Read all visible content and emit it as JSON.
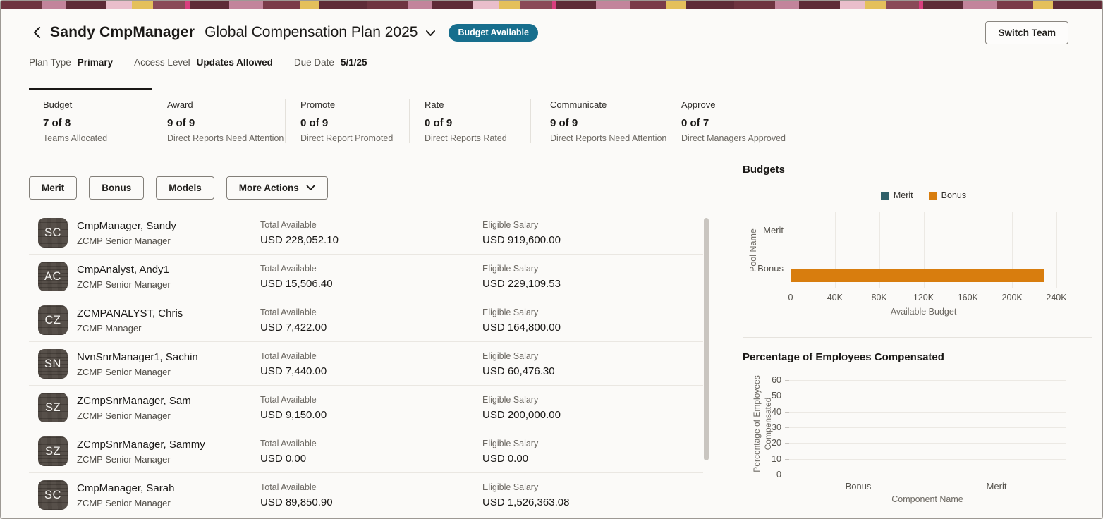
{
  "header": {
    "manager_name": "Sandy CmpManager",
    "plan_title": "Global Compensation Plan 2025",
    "badge": "Budget Available",
    "switch_team": "Switch Team"
  },
  "meta": [
    {
      "label": "Plan Type",
      "value": "Primary"
    },
    {
      "label": "Access Level",
      "value": "Updates Allowed"
    },
    {
      "label": "Due Date",
      "value": "5/1/25"
    }
  ],
  "tabs": [
    {
      "label": "Budget",
      "count": "7 of 8",
      "sub": "Teams Allocated",
      "active": true
    },
    {
      "label": "Award",
      "count": "9 of 9",
      "sub": "Direct Reports Need Attention",
      "active": false
    },
    {
      "label": "Promote",
      "count": "0 of 9",
      "sub": "Direct Report Promoted",
      "active": false
    },
    {
      "label": "Rate",
      "count": "0 of 9",
      "sub": "Direct Reports Rated",
      "active": false
    },
    {
      "label": "Communicate",
      "count": "9 of 9",
      "sub": "Direct Reports Need Attention",
      "active": false
    },
    {
      "label": "Approve",
      "count": "0 of 7",
      "sub": "Direct Managers Approved",
      "active": false
    }
  ],
  "toolbar": {
    "buttons": [
      "Merit",
      "Bonus",
      "Models"
    ],
    "more_actions": "More Actions"
  },
  "list": {
    "total_available_label": "Total Available",
    "eligible_salary_label": "Eligible Salary",
    "rows": [
      {
        "initials": "SC",
        "name": "CmpManager, Sandy",
        "title": "ZCMP Senior Manager",
        "total_available": "USD 228,052.10",
        "eligible_salary": "USD 919,600.00"
      },
      {
        "initials": "AC",
        "name": "CmpAnalyst, Andy1",
        "title": "ZCMP Senior Manager",
        "total_available": "USD 15,506.40",
        "eligible_salary": "USD 229,109.53"
      },
      {
        "initials": "CZ",
        "name": "ZCMPANALYST, Chris",
        "title": "ZCMP Manager",
        "total_available": "USD 7,422.00",
        "eligible_salary": "USD 164,800.00"
      },
      {
        "initials": "SN",
        "name": "NvnSnrManager1, Sachin",
        "title": "ZCMP Senior Manager",
        "total_available": "USD 7,440.00",
        "eligible_salary": "USD 60,476.30"
      },
      {
        "initials": "SZ",
        "name": "ZCmpSnrManager, Sam",
        "title": "ZCMP Senior Manager",
        "total_available": "USD 9,150.00",
        "eligible_salary": "USD 200,000.00"
      },
      {
        "initials": "SZ",
        "name": "ZCmpSnrManager, Sammy",
        "title": "ZCMP Senior Manager",
        "total_available": "USD 0.00",
        "eligible_salary": "USD 0.00"
      },
      {
        "initials": "SC",
        "name": "CmpManager, Sarah",
        "title": "ZCMP Senior Manager",
        "total_available": "USD 89,850.90",
        "eligible_salary": "USD 1,526,363.08"
      }
    ]
  },
  "colors": {
    "merit": "#2E5F68",
    "bonus": "#D87D0E",
    "badge": "#176E8D"
  },
  "chart_data": [
    {
      "type": "bar",
      "orientation": "horizontal",
      "title": "Budgets",
      "categories": [
        "Merit",
        "Bonus"
      ],
      "series": [
        {
          "name": "Merit",
          "color": "#2E5F68",
          "values": [
            0,
            0
          ]
        },
        {
          "name": "Bonus",
          "color": "#D87D0E",
          "values": [
            0,
            228052.1
          ]
        }
      ],
      "xlabel": "Available Budget",
      "ylabel": "Pool Name",
      "xlim": [
        0,
        240000
      ],
      "xticks": [
        {
          "v": 0,
          "label": "0"
        },
        {
          "v": 40000,
          "label": "40K"
        },
        {
          "v": 80000,
          "label": "80K"
        },
        {
          "v": 120000,
          "label": "120K"
        },
        {
          "v": 160000,
          "label": "160K"
        },
        {
          "v": 200000,
          "label": "200K"
        },
        {
          "v": 240000,
          "label": "240K"
        }
      ],
      "legend": [
        "Merit",
        "Bonus"
      ],
      "legend_position": "top",
      "grid": "vertical"
    },
    {
      "type": "bar",
      "orientation": "vertical",
      "title": "Percentage of Employees Compensated",
      "categories": [
        "Bonus",
        "Merit"
      ],
      "values": [
        0,
        0
      ],
      "xlabel": "Component Name",
      "ylabel": "Percentage of Employees Compensated",
      "ylabel_line1": "Percentage of Employees",
      "ylabel_line2": "Compensated",
      "ylim": [
        0,
        60
      ],
      "yticks": [
        0,
        10,
        20,
        30,
        40,
        50,
        60
      ],
      "grid": "horizontal"
    }
  ]
}
